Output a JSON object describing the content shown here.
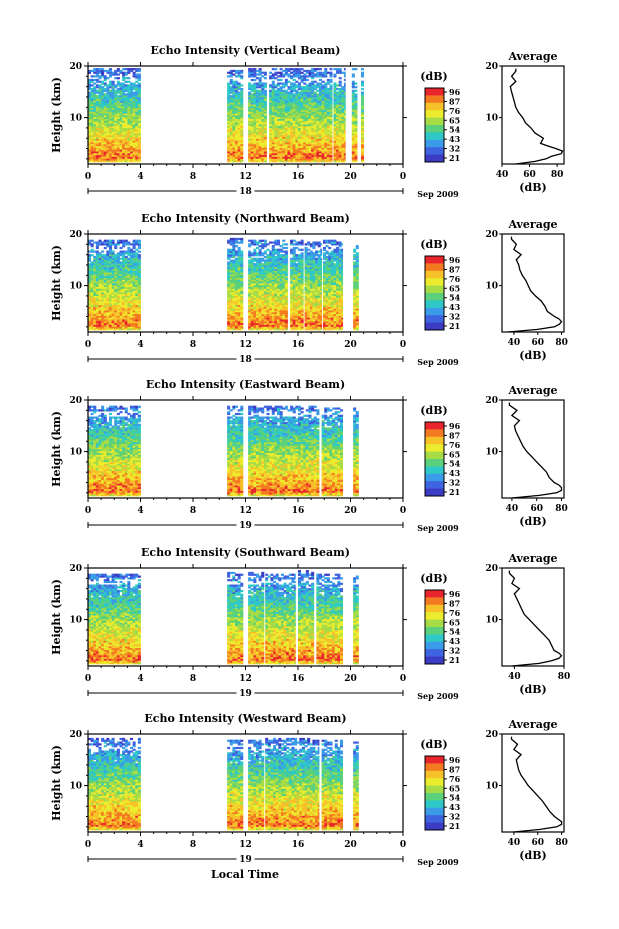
{
  "figure": {
    "xaxis_label": "Local Time",
    "month_label": "Sep 2009",
    "colorbar_unit": "(dB)",
    "colorbar_ticks": [
      "96",
      "87",
      "76",
      "65",
      "54",
      "43",
      "32",
      "21"
    ],
    "colorbar_colors": [
      "#e8242c",
      "#f47a22",
      "#f7c12a",
      "#ecec2e",
      "#a8dc46",
      "#5ad17a",
      "#2fc8c8",
      "#3a9be8",
      "#3e63e0",
      "#3b3bc4"
    ],
    "height_label": "Height (km)",
    "avg_title": "Average",
    "avg_xlabel": "(dB)"
  },
  "chart_data": [
    {
      "type": "heatmap",
      "title": "Echo Intensity (Vertical Beam)",
      "ylabel": "Height (km)",
      "xlim": [
        0,
        24
      ],
      "ylim": [
        1,
        20
      ],
      "x_ticks": [
        "0",
        "4",
        "8",
        "12",
        "16",
        "20",
        "0"
      ],
      "y_ticks": [
        "10",
        "20"
      ],
      "date_label": "18",
      "data_time_ranges": [
        [
          0,
          4
        ],
        [
          10.6,
          11.8
        ],
        [
          12.2,
          13.6
        ],
        [
          13.8,
          18.6
        ],
        [
          18.7,
          19.6
        ],
        [
          20.1,
          20.5
        ],
        [
          20.8,
          21
        ]
      ],
      "top_height_by_range": [
        19.6,
        19.2,
        19.4,
        19.6,
        19.6,
        19.6,
        19.4
      ],
      "colorbar_label": "(dB)",
      "average": {
        "title": "Average",
        "xlabel": "(dB)",
        "x_ticks": [
          "40",
          "60",
          "80"
        ],
        "xlim": [
          40,
          85
        ],
        "height": [
          1,
          1.5,
          2,
          2.5,
          3,
          3.5,
          4,
          4.5,
          5,
          6,
          7,
          8,
          9,
          10,
          11,
          12,
          13,
          14,
          15,
          16,
          17,
          18,
          19,
          19.5
        ],
        "value": [
          50,
          64,
          72,
          76,
          83,
          84,
          79,
          73,
          68,
          70,
          64,
          61,
          57,
          55,
          52,
          50,
          49,
          48,
          47,
          46,
          50,
          47,
          50,
          50
        ]
      }
    },
    {
      "type": "heatmap",
      "title": "Echo Intensity (Northward Beam)",
      "ylabel": "Height (km)",
      "xlim": [
        0,
        24
      ],
      "ylim": [
        1,
        20
      ],
      "x_ticks": [
        "0",
        "4",
        "8",
        "12",
        "16",
        "20",
        "0"
      ],
      "y_ticks": [
        "10",
        "20"
      ],
      "date_label": "18",
      "data_time_ranges": [
        [
          0,
          4
        ],
        [
          10.6,
          11.8
        ],
        [
          12.2,
          15.2
        ],
        [
          15.4,
          16.4
        ],
        [
          16.5,
          17.8
        ],
        [
          17.9,
          19.4
        ],
        [
          20.2,
          20.6
        ]
      ],
      "top_height_by_range": [
        18.8,
        19.2,
        18.6,
        18.6,
        18.4,
        18.6,
        18.2
      ],
      "colorbar_label": "(dB)",
      "average": {
        "title": "Average",
        "xlabel": "(dB)",
        "x_ticks": [
          "40",
          "60",
          "80"
        ],
        "xlim": [
          30,
          82
        ],
        "height": [
          1,
          1.5,
          2,
          2.5,
          3,
          3.5,
          4,
          5,
          6,
          7,
          8,
          9,
          10,
          11,
          12,
          13,
          14,
          15,
          16,
          17,
          18,
          19,
          19.5
        ],
        "value": [
          35,
          60,
          74,
          78,
          80,
          78,
          74,
          68,
          66,
          63,
          58,
          54,
          52,
          50,
          47,
          45,
          44,
          42,
          46,
          40,
          42,
          38,
          38
        ]
      }
    },
    {
      "type": "heatmap",
      "title": "Echo Intensity (Eastward Beam)",
      "ylabel": "Height (km)",
      "xlim": [
        0,
        24
      ],
      "ylim": [
        1,
        20
      ],
      "x_ticks": [
        "0",
        "4",
        "8",
        "12",
        "16",
        "20",
        "0"
      ],
      "y_ticks": [
        "10",
        "20"
      ],
      "date_label": "19",
      "data_time_ranges": [
        [
          0,
          4
        ],
        [
          10.6,
          11.8
        ],
        [
          12.2,
          17.6
        ],
        [
          17.8,
          19.4
        ],
        [
          20.2,
          20.6
        ]
      ],
      "top_height_by_range": [
        18.6,
        18.8,
        18.8,
        18.4,
        18.4
      ],
      "colorbar_label": "(dB)",
      "average": {
        "title": "Average",
        "xlabel": "(dB)",
        "x_ticks": [
          "40",
          "60",
          "80"
        ],
        "xlim": [
          32,
          82
        ],
        "height": [
          1,
          1.5,
          2,
          2.5,
          3,
          3.5,
          4,
          5,
          6,
          7,
          8,
          9,
          10,
          11,
          12,
          13,
          14,
          15,
          16,
          17,
          18,
          19,
          19.5
        ],
        "value": [
          40,
          62,
          76,
          80,
          80,
          78,
          74,
          70,
          68,
          64,
          60,
          56,
          52,
          49,
          47,
          45,
          43,
          42,
          46,
          40,
          44,
          38,
          38
        ]
      }
    },
    {
      "type": "heatmap",
      "title": "Echo Intensity (Southward Beam)",
      "ylabel": "Height (km)",
      "xlim": [
        0,
        24
      ],
      "ylim": [
        1,
        20
      ],
      "x_ticks": [
        "0",
        "4",
        "8",
        "12",
        "16",
        "20",
        "0"
      ],
      "y_ticks": [
        "10",
        "20"
      ],
      "date_label": "19",
      "data_time_ranges": [
        [
          0,
          4
        ],
        [
          10.6,
          11.8
        ],
        [
          12.2,
          13.4
        ],
        [
          13.5,
          15.8
        ],
        [
          16.0,
          17.2
        ],
        [
          17.4,
          19.4
        ],
        [
          20.2,
          20.6
        ]
      ],
      "top_height_by_range": [
        18.8,
        19.2,
        19.0,
        18.6,
        19.4,
        18.8,
        18.4
      ],
      "colorbar_label": "(dB)",
      "average": {
        "title": "Average",
        "xlabel": "(dB)",
        "x_ticks": [
          "40",
          "80"
        ],
        "xlim": [
          30,
          80
        ],
        "height": [
          1,
          1.5,
          2,
          2.5,
          3,
          3.5,
          4,
          5,
          6,
          7,
          8,
          9,
          10,
          11,
          12,
          13,
          14,
          15,
          16,
          17,
          18,
          19,
          19.5
        ],
        "value": [
          38,
          60,
          70,
          76,
          78,
          76,
          72,
          70,
          68,
          64,
          60,
          56,
          52,
          48,
          46,
          44,
          42,
          40,
          44,
          38,
          40,
          36,
          36
        ]
      }
    },
    {
      "type": "heatmap",
      "title": "Echo Intensity (Westward Beam)",
      "ylabel": "Height (km)",
      "xlim": [
        0,
        24
      ],
      "ylim": [
        1,
        20
      ],
      "x_ticks": [
        "0",
        "4",
        "8",
        "12",
        "16",
        "20",
        "0"
      ],
      "y_ticks": [
        "10",
        "20"
      ],
      "date_label": "19",
      "data_time_ranges": [
        [
          0,
          4
        ],
        [
          10.6,
          11.8
        ],
        [
          12.2,
          13.4
        ],
        [
          13.5,
          17.6
        ],
        [
          17.8,
          19.4
        ],
        [
          20.2,
          20.6
        ]
      ],
      "top_height_by_range": [
        19.0,
        18.6,
        18.6,
        19.0,
        18.8,
        18.4
      ],
      "colorbar_label": "(dB)",
      "average": {
        "title": "Average",
        "xlabel": "(dB)",
        "x_ticks": [
          "40",
          "60",
          "80"
        ],
        "xlim": [
          30,
          82
        ],
        "height": [
          1,
          1.5,
          2,
          2.5,
          3,
          3.5,
          4,
          5,
          6,
          7,
          8,
          9,
          10,
          11,
          12,
          13,
          14,
          15,
          16,
          17,
          18,
          19,
          19.5
        ],
        "value": [
          40,
          62,
          76,
          80,
          80,
          77,
          74,
          70,
          67,
          64,
          60,
          56,
          52,
          49,
          46,
          44,
          43,
          42,
          46,
          40,
          43,
          38,
          38
        ]
      }
    }
  ]
}
